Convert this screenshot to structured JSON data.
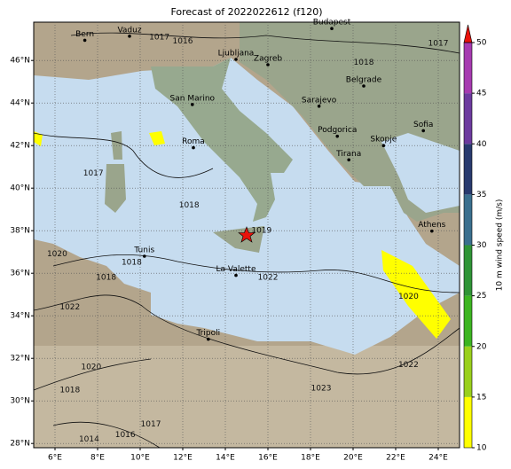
{
  "title": "Forecast of 2022022612 (f120)",
  "map": {
    "lonlim": [
      5,
      25
    ],
    "latlim": [
      27.8,
      47.8
    ],
    "lonticks": [
      {
        "value": 6,
        "label": "6°E"
      },
      {
        "value": 8,
        "label": "8°E"
      },
      {
        "value": 10,
        "label": "10°E"
      },
      {
        "value": 12,
        "label": "12°E"
      },
      {
        "value": 14,
        "label": "14°E"
      },
      {
        "value": 16,
        "label": "16°E"
      },
      {
        "value": 18,
        "label": "18°E"
      },
      {
        "value": 20,
        "label": "20°E"
      },
      {
        "value": 22,
        "label": "22°E"
      },
      {
        "value": 24,
        "label": "24°E"
      }
    ],
    "latticks": [
      {
        "value": 28,
        "label": "28°N"
      },
      {
        "value": 30,
        "label": "30°N"
      },
      {
        "value": 32,
        "label": "32°N"
      },
      {
        "value": 34,
        "label": "34°N"
      },
      {
        "value": 36,
        "label": "36°N"
      },
      {
        "value": 38,
        "label": "38°N"
      },
      {
        "value": 40,
        "label": "40°N"
      },
      {
        "value": 42,
        "label": "42°N"
      },
      {
        "value": 44,
        "label": "44°N"
      },
      {
        "value": 46,
        "label": "46°N"
      }
    ],
    "cities": [
      {
        "name": "Bern",
        "lon": 7.4,
        "lat": 46.95
      },
      {
        "name": "Vaduz",
        "lon": 9.5,
        "lat": 47.14
      },
      {
        "name": "Budapest",
        "lon": 19.0,
        "lat": 47.5
      },
      {
        "name": "Ljubljana",
        "lon": 14.5,
        "lat": 46.05
      },
      {
        "name": "Zagreb",
        "lon": 16.0,
        "lat": 45.8
      },
      {
        "name": "San Marino",
        "lon": 12.45,
        "lat": 43.93
      },
      {
        "name": "Sarajevo",
        "lon": 18.4,
        "lat": 43.85
      },
      {
        "name": "Belgrade",
        "lon": 20.5,
        "lat": 44.8
      },
      {
        "name": "Roma",
        "lon": 12.5,
        "lat": 41.9
      },
      {
        "name": "Podgorica",
        "lon": 19.26,
        "lat": 42.44
      },
      {
        "name": "Skopje",
        "lon": 21.43,
        "lat": 42.0
      },
      {
        "name": "Tirana",
        "lon": 19.8,
        "lat": 41.33
      },
      {
        "name": "Sofia",
        "lon": 23.3,
        "lat": 42.7
      },
      {
        "name": "Athens",
        "lon": 23.7,
        "lat": 37.98
      },
      {
        "name": "Tunis",
        "lon": 10.2,
        "lat": 36.8
      },
      {
        "name": "La Valette",
        "lon": 14.5,
        "lat": 35.9
      },
      {
        "name": "Tripoli",
        "lon": 13.2,
        "lat": 32.9
      }
    ],
    "isobar_labels": [
      {
        "value": 1017,
        "lon": 10.9,
        "lat": 47.1
      },
      {
        "value": 1016,
        "lon": 12.0,
        "lat": 46.9
      },
      {
        "value": 1018,
        "lon": 20.5,
        "lat": 45.9
      },
      {
        "value": 1017,
        "lon": 24.0,
        "lat": 46.8
      },
      {
        "value": 1017,
        "lon": 7.8,
        "lat": 40.7
      },
      {
        "value": 1018,
        "lon": 12.3,
        "lat": 39.2
      },
      {
        "value": 1019,
        "lon": 15.7,
        "lat": 38.0
      },
      {
        "value": 1020,
        "lon": 6.1,
        "lat": 36.9
      },
      {
        "value": 1018,
        "lon": 9.6,
        "lat": 36.5
      },
      {
        "value": 1018,
        "lon": 8.4,
        "lat": 35.8
      },
      {
        "value": 1022,
        "lon": 6.7,
        "lat": 34.4
      },
      {
        "value": 1022,
        "lon": 16.0,
        "lat": 35.8
      },
      {
        "value": 1020,
        "lon": 22.6,
        "lat": 34.9
      },
      {
        "value": 1022,
        "lon": 22.6,
        "lat": 31.7
      },
      {
        "value": 1020,
        "lon": 7.7,
        "lat": 31.6
      },
      {
        "value": 1018,
        "lon": 6.7,
        "lat": 30.5
      },
      {
        "value": 1023,
        "lon": 18.5,
        "lat": 30.6
      },
      {
        "value": 1014,
        "lon": 7.6,
        "lat": 28.2
      },
      {
        "value": 1016,
        "lon": 9.3,
        "lat": 28.4
      },
      {
        "value": 1017,
        "lon": 10.5,
        "lat": 28.9
      }
    ]
  },
  "colorbar": {
    "label": "10 m wind speed (m/s)",
    "ticks": [
      10,
      15,
      20,
      25,
      30,
      35,
      40,
      45,
      50
    ],
    "colors": [
      "#ffff00",
      "#9ad01c",
      "#3cb521",
      "#2f9436",
      "#3a6f8e",
      "#283a6e",
      "#6c3a9e",
      "#a63ab0"
    ],
    "extend_color": "#e8120b"
  }
}
